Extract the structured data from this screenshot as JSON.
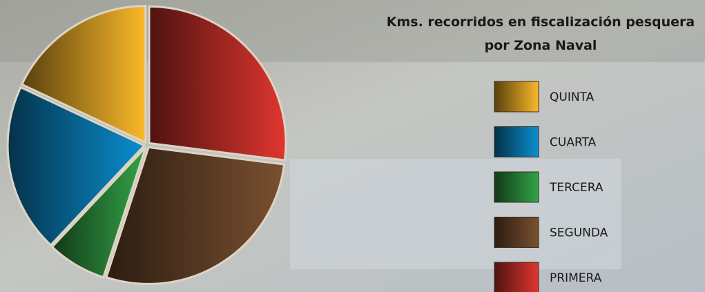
{
  "chart_data": {
    "type": "pie",
    "title": [
      "Kms. recorridos en fiscalización pesquera",
      "por Zona Naval"
    ],
    "categories": [
      "QUINTA",
      "CUARTA",
      "TERCERA",
      "SEGUNDA",
      "PRIMERA"
    ],
    "values": [
      18,
      20,
      7,
      28,
      27
    ],
    "colors": [
      "#fbb929",
      "#0a8fd0",
      "#33a447",
      "#7a5030",
      "#e0362f"
    ]
  }
}
